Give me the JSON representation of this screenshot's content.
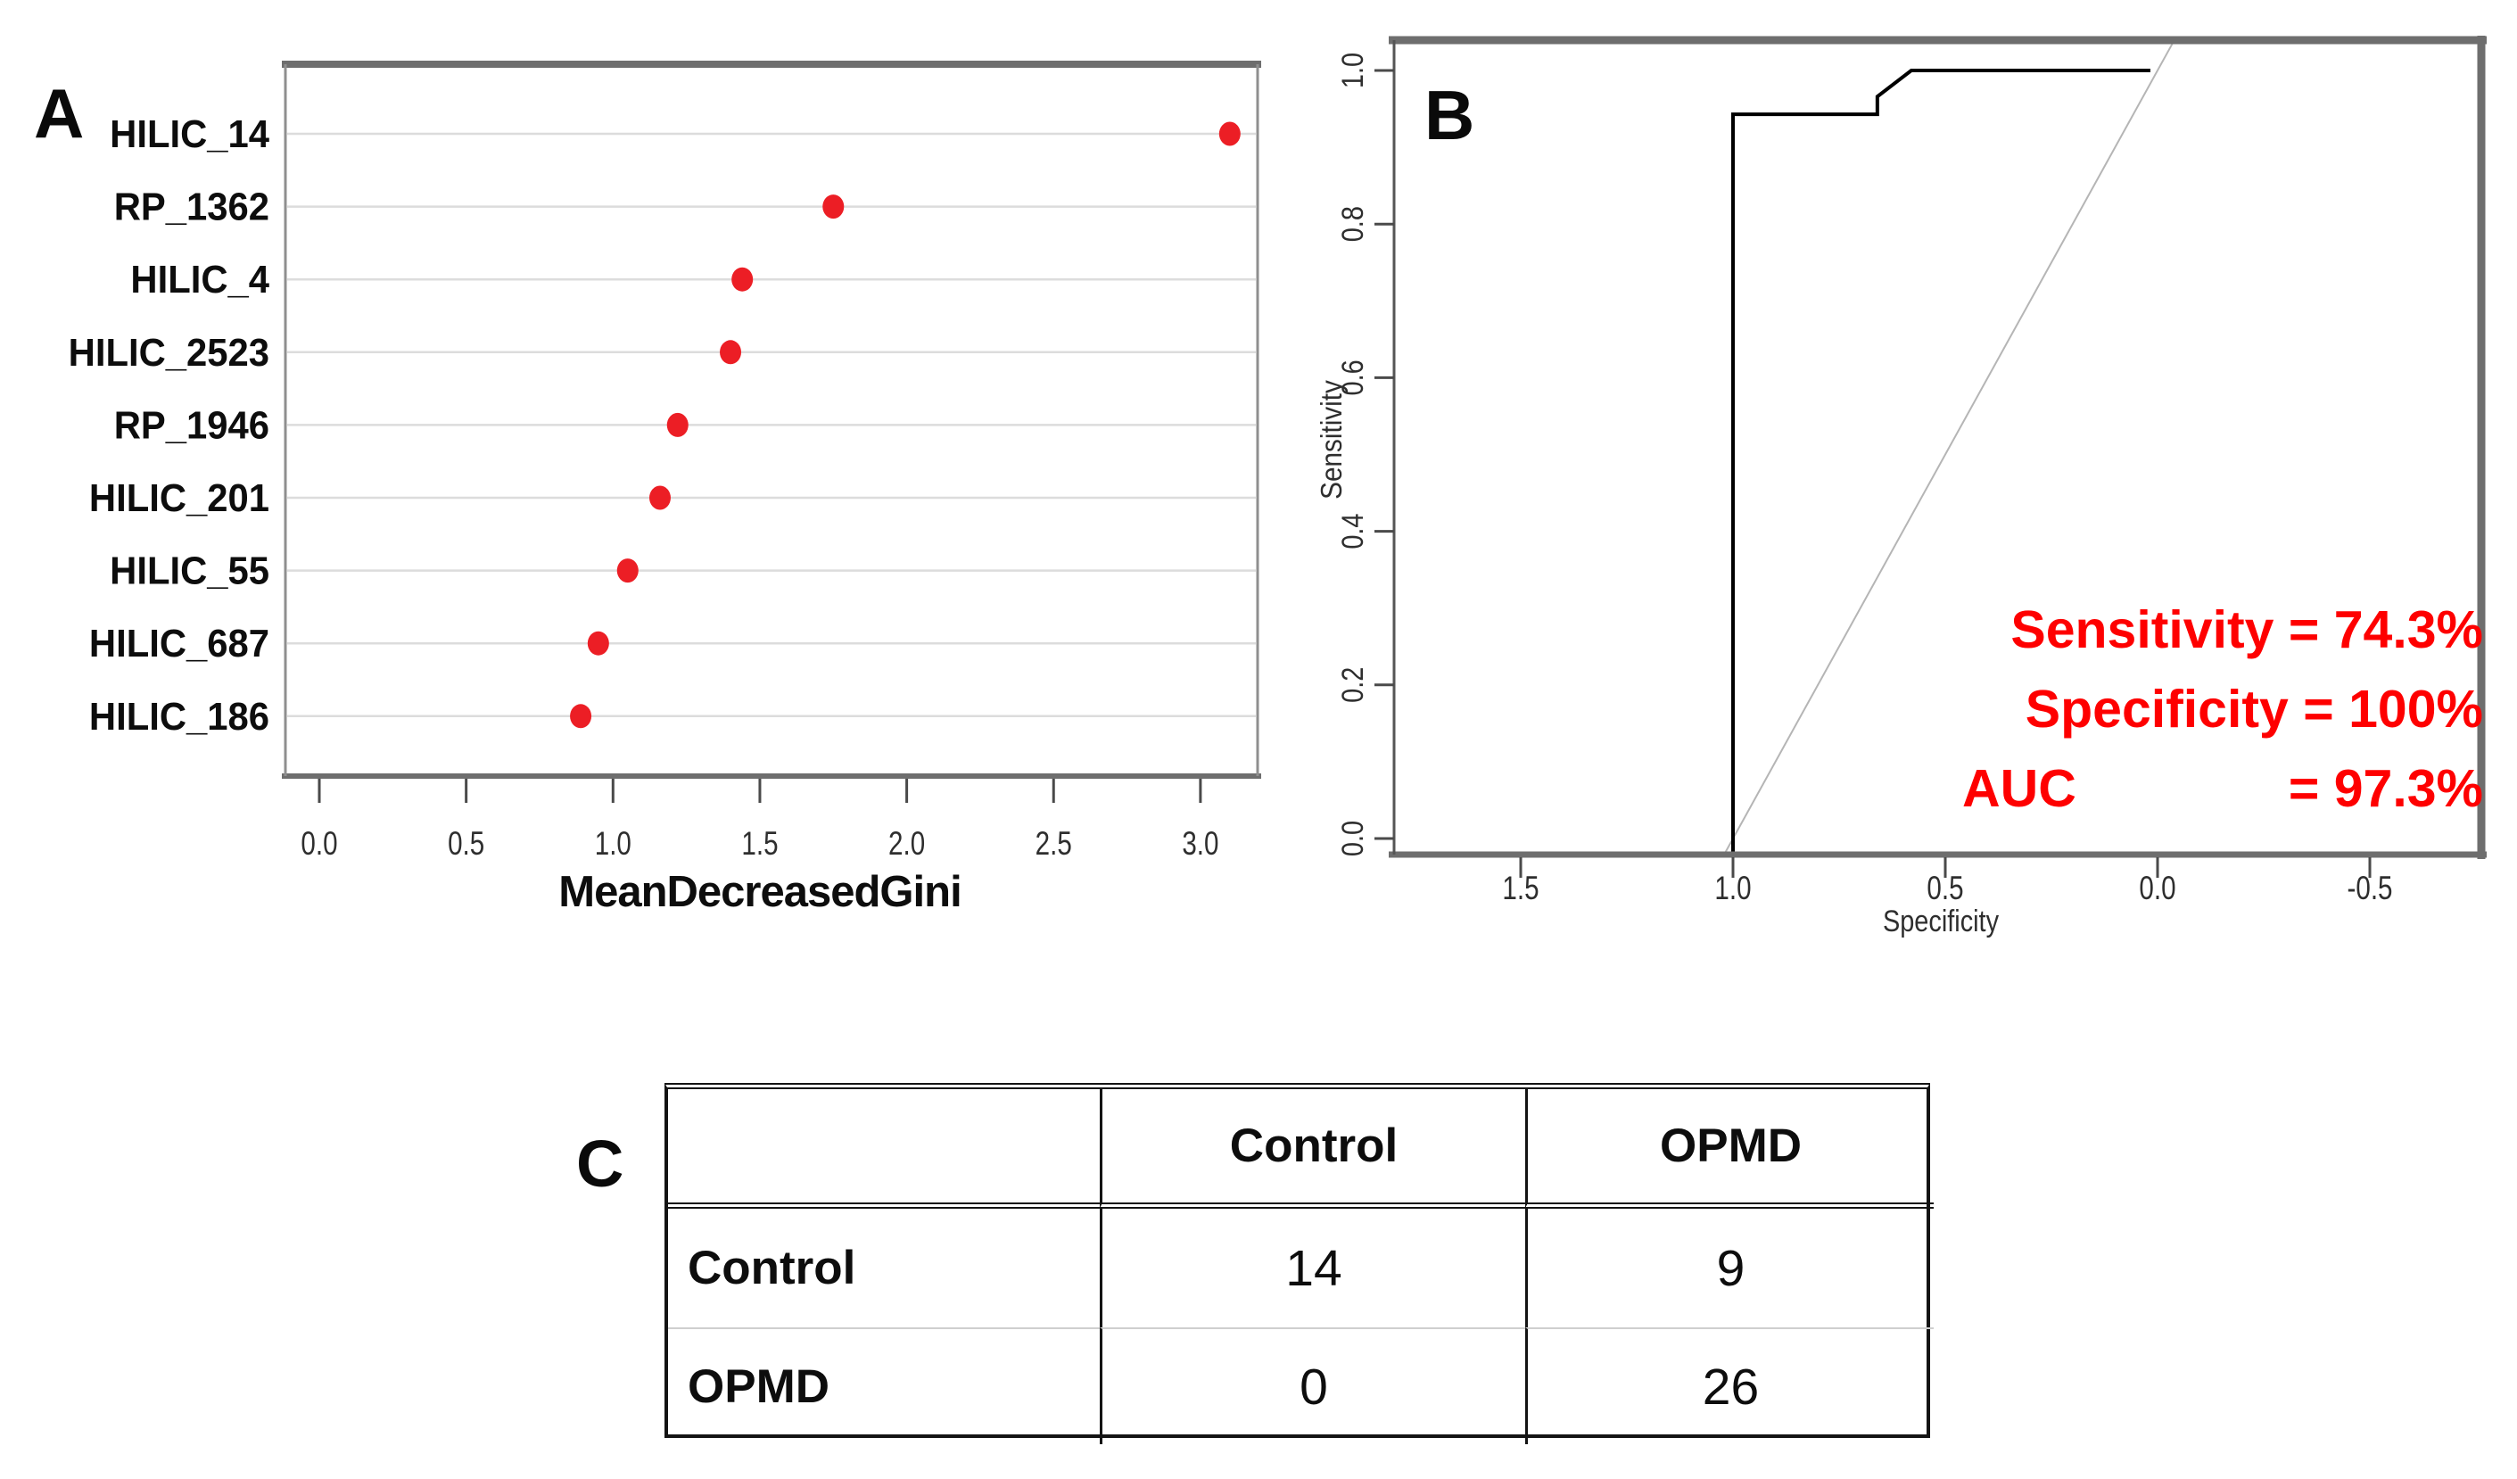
{
  "figure": {
    "background": "#ffffff",
    "panel_labels": {
      "a": "A",
      "b": "B",
      "c": "C"
    }
  },
  "chart_data": [
    {
      "panel": "A",
      "type": "scatter",
      "subtype": "horizontal-dot-plot-variable-importance",
      "categories": [
        "HILIC_14",
        "RP_1362",
        "HILIC_4",
        "HILIC_2523",
        "RP_1946",
        "HILIC_201",
        "HILIC_55",
        "HILIC_687",
        "HILIC_186"
      ],
      "values": [
        3.1,
        1.75,
        1.44,
        1.4,
        1.22,
        1.16,
        1.05,
        0.95,
        0.89
      ],
      "xlabel": "MeanDecreasedGini",
      "xticks": [
        "0.0",
        "0.5",
        "1.0",
        "1.5",
        "2.0",
        "2.5",
        "3.0"
      ],
      "xtick_values": [
        0,
        0.5,
        1,
        1.5,
        2,
        2.5,
        3
      ],
      "xlim": [
        -0.12,
        3.2
      ],
      "grid": true,
      "gridline_color": "#dcdcdc",
      "dot_color": "#ec1e25",
      "legend": "none"
    },
    {
      "panel": "B",
      "type": "line",
      "subtype": "roc-curve",
      "xlabel": "Specificity",
      "ylabel": "Sensitivity",
      "x_axis_reversed": true,
      "xticks": [
        "1.5",
        "1.0",
        "0.5",
        "0.0",
        "-0.5"
      ],
      "xtick_values": [
        1.5,
        1.0,
        0.5,
        0.0,
        -0.5
      ],
      "yticks": [
        "0.0",
        "0.2",
        "0.4",
        "0.6",
        "0.8",
        "1.0"
      ],
      "ytick_values": [
        0,
        0.2,
        0.4,
        0.6,
        0.8,
        1
      ],
      "xlim": [
        1.8,
        -0.76
      ],
      "ylim": [
        -0.02,
        1.04
      ],
      "series": [
        {
          "name": "ROC curve",
          "color": "#000000",
          "points": [
            [
              1.0,
              0.0
            ],
            [
              1.0,
              0.943
            ],
            [
              0.66,
              0.943
            ],
            [
              0.66,
              0.966
            ],
            [
              0.58,
              1.0
            ],
            [
              0.017,
              1.0
            ]
          ]
        },
        {
          "name": "chance diagonal",
          "color": "#b5b5b5",
          "points": [
            [
              1.02,
              -0.02
            ],
            [
              -0.04,
              1.04
            ]
          ]
        }
      ],
      "annotations": {
        "line1": "Sensitivity = 74.3%",
        "line2": "Specificity = 100%",
        "line3_label": "AUC",
        "line3_value": "= 97.3%",
        "color": "#fe0000"
      }
    },
    {
      "panel": "C",
      "type": "table",
      "subtype": "confusion-matrix",
      "columns": [
        "",
        "Control",
        "OPMD"
      ],
      "rows": [
        {
          "label": "Control",
          "values": [
            "14",
            "9"
          ]
        },
        {
          "label": "OPMD",
          "values": [
            "0",
            "26"
          ]
        }
      ]
    }
  ]
}
